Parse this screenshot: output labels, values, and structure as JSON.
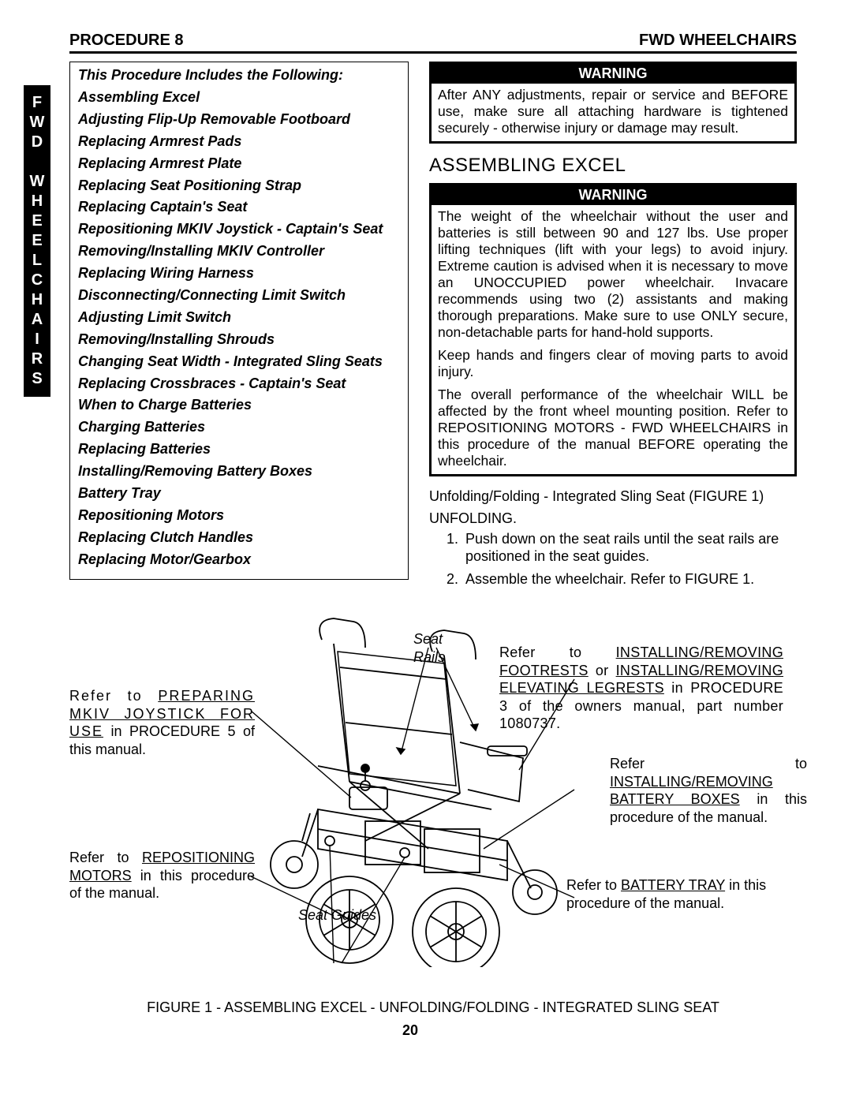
{
  "header": {
    "left": "PROCEDURE 8",
    "right": "FWD WHEELCHAIRS"
  },
  "tab_letters": [
    "F",
    "W",
    "D",
    "",
    "W",
    "H",
    "E",
    "E",
    "L",
    "C",
    "H",
    "A",
    "I",
    "R",
    "S"
  ],
  "toc": {
    "title": "This Procedure Includes the Following:",
    "items": [
      "Assembling Excel",
      "Adjusting Flip-Up Removable Footboard",
      "Replacing Armrest Pads",
      "Replacing Armrest Plate",
      "Replacing Seat Positioning Strap",
      "Replacing Captain's Seat",
      "Repositioning MKIV Joystick - Captain's Seat",
      "Removing/Installing MKIV Controller",
      "Replacing Wiring Harness",
      "Disconnecting/Connecting Limit Switch",
      "Adjusting Limit Switch",
      "Removing/Installing Shrouds",
      "Changing Seat Width - Integrated Sling Seats",
      "Replacing Crossbraces - Captain's Seat",
      "When to Charge Batteries",
      "Charging Batteries",
      "Replacing Batteries",
      "Installing/Removing Battery Boxes",
      "Battery Tray",
      "Repositioning Motors",
      "Replacing Clutch Handles",
      "Replacing Motor/Gearbox"
    ]
  },
  "warning1": {
    "header": "WARNING",
    "body": "After ANY adjustments, repair or service and BEFORE use, make sure all attaching hardware is tightened securely - otherwise injury or damage may result."
  },
  "section_title": "ASSEMBLING EXCEL",
  "warning2": {
    "header": "WARNING",
    "p1": "The weight of the wheelchair without the user and batteries is still between 90 and 127 lbs. Use proper lifting techniques (lift with your legs) to avoid injury. Extreme caution is advised when it is necessary to move an UNOCCUPIED power wheelchair. Invacare recommends using two (2) assistants and making thorough preparations. Make sure to use ONLY secure, non-detachable parts for hand-hold supports.",
    "p2": "Keep hands and fingers clear of moving parts to avoid injury.",
    "p3": "The overall performance of the wheelchair WILL be affected by the front wheel mounting position. Refer to REPOSITIONING MOTORS - FWD WHEELCHAIRS in this procedure of the manual BEFORE operating the wheelchair."
  },
  "subhead1": "Unfolding/Folding - Integrated Sling Seat (FIGURE 1)",
  "subhead2": "UNFOLDING.",
  "steps": [
    "Push down on the seat rails until the seat rails are positioned in the seat guides.",
    "Assemble the wheelchair. Refer to FIGURE 1."
  ],
  "callouts": {
    "mkiv_pre": "Refer to ",
    "mkiv_ul": "PREPARING MKIV JOYSTICK FOR USE",
    "mkiv_post": " in PROCEDURE 5 of this manual.",
    "motors_pre": "Refer to ",
    "motors_ul": "REPOSITIONING MOTORS",
    "motors_post": " in this procedure of the manual.",
    "seat_rails": "Seat Rails",
    "footrests_pre": "Refer to ",
    "footrests_ul1": "INSTALLING/REMOVING FOOTRESTS",
    "footrests_mid": " or ",
    "footrests_ul2": "INSTALLING/REMOVING ELEVATING LEGRESTS",
    "footrests_post": " in PROCEDURE 3 of the owners manual, part number 1080737.",
    "battery_boxes_pre": "Refer to ",
    "battery_boxes_ul": "INSTALLING/REMOVING BATTERY BOXES",
    "battery_boxes_post": " in this procedure of the manual.",
    "battery_tray_pre": "Refer to ",
    "battery_tray_ul": "BATTERY TRAY",
    "battery_tray_post": " in this procedure of the manual.",
    "seat_guides": "Seat Guides"
  },
  "figure_caption": "FIGURE 1 - ASSEMBLING EXCEL - UNFOLDING/FOLDING - INTEGRATED SLING SEAT",
  "page_number": "20"
}
